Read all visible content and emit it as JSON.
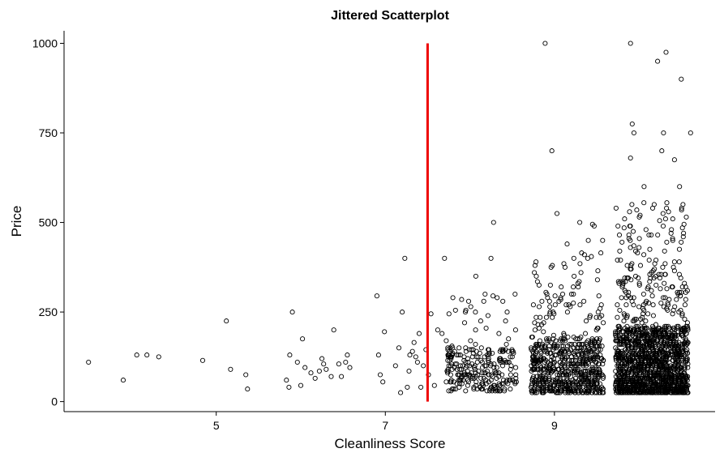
{
  "chart_data": {
    "type": "scatter",
    "title": "Jittered Scatterplot",
    "xlabel": "Cleanliness Score",
    "ylabel": "Price",
    "xlim": [
      3.2,
      10.9
    ],
    "ylim": [
      -28,
      1035
    ],
    "x_ticks": [
      5,
      7,
      9
    ],
    "y_ticks": [
      0,
      250,
      500,
      750,
      1000
    ],
    "reference_line": {
      "x": 7.5,
      "y_from": 0,
      "y_to": 1000,
      "color": "#ee0000"
    },
    "grid": false,
    "legend": "none",
    "point_color": "#000000",
    "points": [
      [
        3.49,
        110
      ],
      [
        3.9,
        60
      ],
      [
        4.06,
        130
      ],
      [
        4.18,
        130
      ],
      [
        4.32,
        125
      ],
      [
        4.84,
        115
      ],
      [
        5.12,
        225
      ],
      [
        5.17,
        90
      ],
      [
        5.35,
        75
      ],
      [
        5.37,
        35
      ],
      [
        5.83,
        60
      ],
      [
        5.86,
        40
      ],
      [
        5.87,
        130
      ],
      [
        5.9,
        250
      ],
      [
        5.96,
        110
      ],
      [
        6.0,
        45
      ],
      [
        6.02,
        175
      ],
      [
        6.05,
        95
      ],
      [
        6.12,
        80
      ],
      [
        6.17,
        65
      ],
      [
        6.22,
        85
      ],
      [
        6.25,
        120
      ],
      [
        6.27,
        105
      ],
      [
        6.3,
        90
      ],
      [
        6.36,
        70
      ],
      [
        6.39,
        200
      ],
      [
        6.45,
        105
      ],
      [
        6.48,
        70
      ],
      [
        6.53,
        110
      ],
      [
        6.55,
        130
      ],
      [
        6.58,
        95
      ],
      [
        6.9,
        295
      ],
      [
        6.92,
        130
      ],
      [
        6.94,
        75
      ],
      [
        6.97,
        55
      ],
      [
        6.99,
        195
      ],
      [
        7.12,
        100
      ],
      [
        7.16,
        150
      ],
      [
        7.18,
        25
      ],
      [
        7.2,
        250
      ],
      [
        7.23,
        400
      ],
      [
        7.26,
        40
      ],
      [
        7.28,
        85
      ],
      [
        7.29,
        130
      ],
      [
        7.32,
        140
      ],
      [
        7.34,
        165
      ],
      [
        7.36,
        125
      ],
      [
        7.38,
        110
      ],
      [
        7.4,
        190
      ],
      [
        7.42,
        40
      ],
      [
        7.45,
        100
      ],
      [
        7.48,
        145
      ],
      [
        7.51,
        75
      ],
      [
        7.54,
        245
      ],
      [
        7.58,
        45
      ],
      [
        7.62,
        200
      ],
      [
        7.67,
        190
      ],
      [
        7.7,
        400
      ],
      [
        7.72,
        170
      ],
      [
        7.74,
        130
      ]
    ],
    "dense_clusters": [
      {
        "x_from": 7.72,
        "x_to": 8.55,
        "y_min": 30,
        "y_typical_max": 250,
        "y_tail_max": 300,
        "n": 260,
        "seed": 11
      },
      {
        "x_from": 8.72,
        "x_to": 9.58,
        "y_min": 25,
        "y_typical_max": 300,
        "y_tail_max": 420,
        "n": 700,
        "seed": 23
      },
      {
        "x_from": 9.72,
        "x_to": 10.58,
        "y_min": 25,
        "y_typical_max": 350,
        "y_tail_max": 560,
        "n": 1600,
        "seed": 37
      }
    ],
    "outliers": [
      [
        8.07,
        350
      ],
      [
        8.25,
        400
      ],
      [
        8.28,
        500
      ],
      [
        8.18,
        300
      ],
      [
        8.44,
        250
      ],
      [
        8.89,
        1000
      ],
      [
        8.97,
        700
      ],
      [
        9.03,
        525
      ],
      [
        9.15,
        440
      ],
      [
        9.3,
        500
      ],
      [
        9.45,
        495
      ],
      [
        9.47,
        490
      ],
      [
        9.4,
        450
      ],
      [
        9.57,
        450
      ],
      [
        9.23,
        400
      ],
      [
        8.96,
        375
      ],
      [
        9.9,
        1000
      ],
      [
        10.22,
        950
      ],
      [
        10.32,
        975
      ],
      [
        10.5,
        900
      ],
      [
        9.92,
        775
      ],
      [
        9.94,
        750
      ],
      [
        10.29,
        750
      ],
      [
        10.61,
        750
      ],
      [
        10.27,
        700
      ],
      [
        10.42,
        675
      ],
      [
        9.9,
        680
      ],
      [
        10.48,
        600
      ],
      [
        10.06,
        600
      ],
      [
        10.18,
        550
      ],
      [
        10.52,
        550
      ]
    ]
  }
}
